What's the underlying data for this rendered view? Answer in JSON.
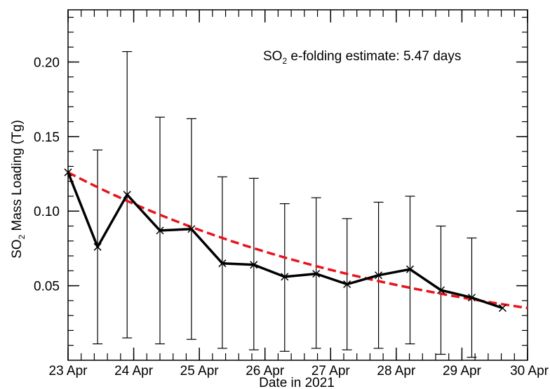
{
  "chart_data": {
    "type": "line",
    "title": "",
    "xlabel": "Date in 2021",
    "ylabel_main": "SO",
    "ylabel_sub": "2",
    "ylabel_rest": " Mass Loading (Tg)",
    "annotation": {
      "prefix": "SO",
      "sub": "2",
      "rest": " e-folding estimate:  5.47 days"
    },
    "x_tick_labels": [
      "23 Apr",
      "24 Apr",
      "25 Apr",
      "26 Apr",
      "27 Apr",
      "28 Apr",
      "29 Apr",
      "30 Apr"
    ],
    "y_tick_labels": [
      "0.05",
      "0.10",
      "0.15",
      "0.20"
    ],
    "y_ticks": [
      0.05,
      0.1,
      0.15,
      0.2
    ],
    "xlim": [
      0,
      7
    ],
    "ylim": [
      0.0,
      0.235
    ],
    "grid": false,
    "series": [
      {
        "color": "#000000",
        "style": "solid",
        "marker": "x",
        "x": [
          0.0,
          0.45,
          0.9,
          1.4,
          1.88,
          2.35,
          2.83,
          3.3,
          3.78,
          4.25,
          4.73,
          5.21,
          5.68,
          6.15,
          6.62
        ],
        "y": [
          0.126,
          0.076,
          0.111,
          0.087,
          0.088,
          0.065,
          0.064,
          0.056,
          0.058,
          0.051,
          0.057,
          0.061,
          0.047,
          0.042,
          0.035
        ],
        "err_high": [
          0.126,
          0.141,
          0.207,
          0.163,
          0.162,
          0.123,
          0.122,
          0.105,
          0.109,
          0.095,
          0.106,
          0.11,
          0.09,
          0.082,
          0.035
        ],
        "err_low": [
          0.126,
          0.011,
          0.015,
          0.011,
          0.014,
          0.008,
          0.007,
          0.006,
          0.008,
          0.007,
          0.008,
          0.011,
          0.004,
          0.002,
          0.035
        ]
      },
      {
        "color": "#e8141c",
        "style": "dashed",
        "x0": 0.0,
        "x1": 7.0,
        "y0": 0.126,
        "efold_days": 5.47
      }
    ]
  }
}
